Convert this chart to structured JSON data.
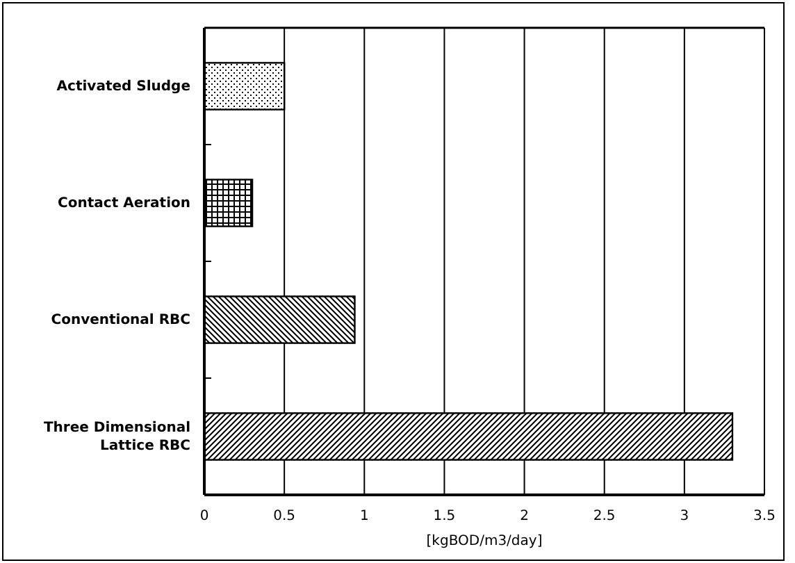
{
  "chart_data": {
    "type": "bar",
    "orientation": "horizontal",
    "xlabel": "[kgBOD/m3/day]",
    "categories": [
      "Activated Sludge",
      "Contact Aeration",
      "Conventional RBC",
      "Three Dimensional Lattice RBC"
    ],
    "values": [
      0.5,
      0.3,
      0.94,
      3.3
    ],
    "colors": [
      "#000000",
      "#000000",
      "#000000",
      "#000000"
    ],
    "xlim": [
      0,
      3.5
    ],
    "xticks": [
      0,
      0.5,
      1,
      1.5,
      2,
      2.5,
      3,
      3.5
    ],
    "grid": "x"
  }
}
